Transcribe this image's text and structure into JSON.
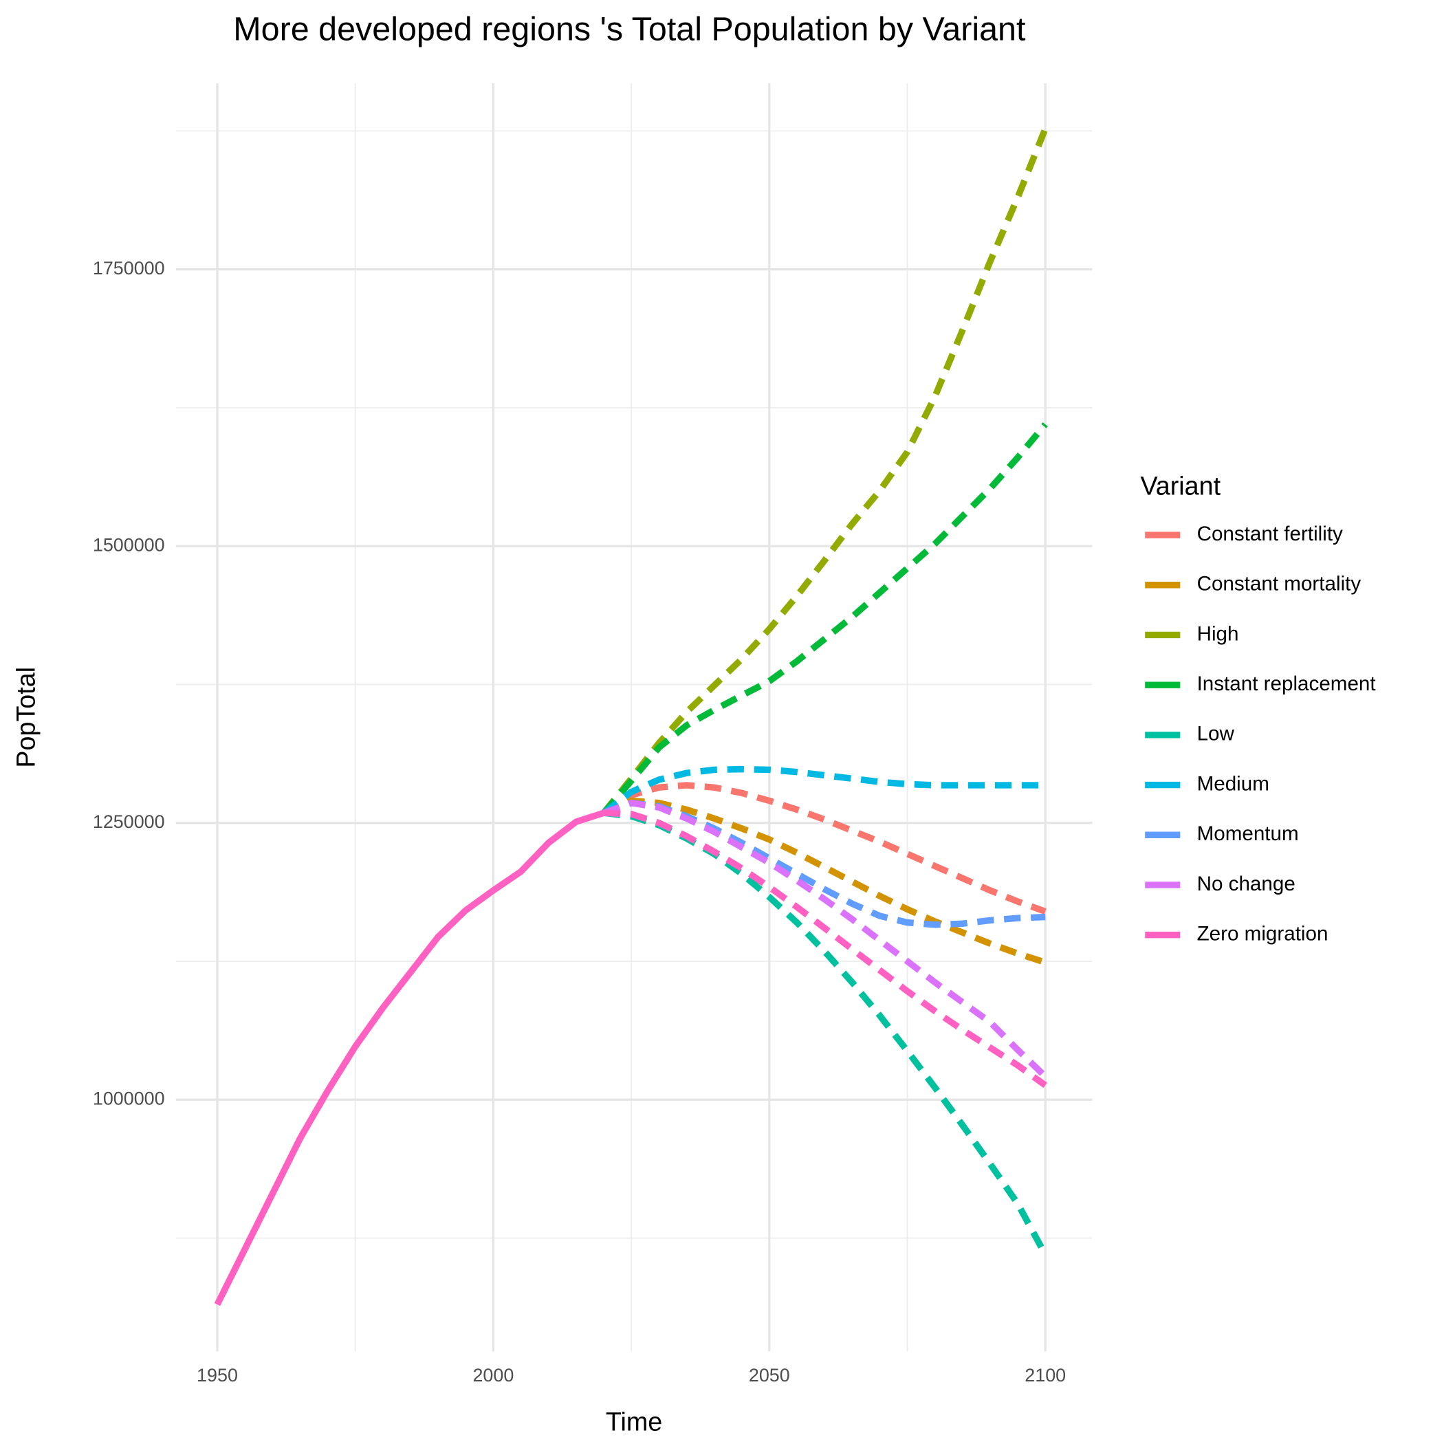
{
  "chart_data": {
    "type": "line",
    "title": "More developed regions 's Total Population by Variant",
    "x_label": "Time",
    "y_label": "PopTotal",
    "legend_title": "Variant",
    "legend_position": "right",
    "grid": true,
    "x": [
      1950,
      1955,
      1960,
      1965,
      1970,
      1975,
      1980,
      1985,
      1990,
      1995,
      2000,
      2005,
      2010,
      2015,
      2020,
      2025,
      2030,
      2035,
      2040,
      2045,
      2050,
      2055,
      2060,
      2065,
      2070,
      2075,
      2080,
      2085,
      2090,
      2095,
      2100
    ],
    "xlim": [
      1942.5,
      2108.5
    ],
    "xticks": [
      1950,
      2000,
      2050,
      2100
    ],
    "xticks_minor": [
      1975,
      2025,
      2075
    ],
    "ylim": [
      772600,
      1918000
    ],
    "yticks": [
      1000000,
      1250000,
      1500000,
      1750000
    ],
    "yticks_minor": [
      875000,
      1125000,
      1375000,
      1625000,
      1875000
    ],
    "estimates": {
      "color": "#FF61C3",
      "values": [
        815000,
        865000,
        915000,
        965000,
        1008000,
        1048000,
        1083000,
        1115000,
        1147000,
        1171000,
        1189000,
        1206000,
        1232000,
        1251000,
        1259000,
        null,
        null,
        null,
        null,
        null,
        null,
        null,
        null,
        null,
        null,
        null,
        null,
        null,
        null,
        null,
        null
      ]
    },
    "series": [
      {
        "name": "Constant fertility",
        "color": "#F8766D",
        "values": [
          null,
          null,
          null,
          null,
          null,
          null,
          null,
          null,
          null,
          null,
          null,
          null,
          null,
          null,
          1259000,
          1275000,
          1282000,
          1284000,
          1282000,
          1277000,
          1270000,
          1262000,
          1253000,
          1243000,
          1233000,
          1222000,
          1211000,
          1200000,
          1189000,
          1179000,
          1170000
        ]
      },
      {
        "name": "Constant mortality",
        "color": "#D39200",
        "values": [
          null,
          null,
          null,
          null,
          null,
          null,
          null,
          null,
          null,
          null,
          null,
          null,
          null,
          null,
          1259000,
          1270000,
          1268000,
          1262000,
          1254000,
          1245000,
          1235000,
          1223000,
          1210000,
          1197000,
          1184000,
          1172000,
          1161000,
          1151000,
          1141000,
          1132000,
          1124000
        ]
      },
      {
        "name": "High",
        "color": "#93AA00",
        "values": [
          null,
          null,
          null,
          null,
          null,
          null,
          null,
          null,
          null,
          null,
          null,
          null,
          null,
          null,
          1259000,
          1290000,
          1322000,
          1350000,
          1374000,
          1398000,
          1425000,
          1455000,
          1487000,
          1520000,
          1550000,
          1585000,
          1635000,
          1695000,
          1757000,
          1815000,
          1877000
        ]
      },
      {
        "name": "Instant replacement",
        "color": "#00BA38",
        "values": [
          null,
          null,
          null,
          null,
          null,
          null,
          null,
          null,
          null,
          null,
          null,
          null,
          null,
          null,
          1259000,
          1288000,
          1318000,
          1338000,
          1352000,
          1365000,
          1378000,
          1396000,
          1416000,
          1436000,
          1458000,
          1480000,
          1502000,
          1527000,
          1552000,
          1580000,
          1610000
        ]
      },
      {
        "name": "Low",
        "color": "#00C19F",
        "values": [
          null,
          null,
          null,
          null,
          null,
          null,
          null,
          null,
          null,
          null,
          null,
          null,
          null,
          null,
          1259000,
          1256000,
          1248000,
          1236000,
          1222000,
          1204000,
          1183000,
          1160000,
          1134000,
          1106000,
          1076000,
          1044000,
          1011000,
          977000,
          942000,
          906000,
          860000
        ]
      },
      {
        "name": "Medium",
        "color": "#00B9E3",
        "values": [
          null,
          null,
          null,
          null,
          null,
          null,
          null,
          null,
          null,
          null,
          null,
          null,
          null,
          null,
          1259000,
          1278000,
          1289000,
          1295000,
          1298000,
          1298500,
          1298000,
          1296000,
          1293000,
          1290000,
          1287000,
          1285000,
          1284000,
          1284000,
          1284000,
          1284000,
          1284000
        ]
      },
      {
        "name": "Momentum",
        "color": "#619CFF",
        "values": [
          null,
          null,
          null,
          null,
          null,
          null,
          null,
          null,
          null,
          null,
          null,
          null,
          null,
          null,
          1259000,
          1268000,
          1265000,
          1256000,
          1245000,
          1232000,
          1218000,
          1204000,
          1190000,
          1177000,
          1166000,
          1160000,
          1158000,
          1159000,
          1162000,
          1164000,
          1165000
        ]
      },
      {
        "name": "No change",
        "color": "#DB72FB",
        "values": [
          null,
          null,
          null,
          null,
          null,
          null,
          null,
          null,
          null,
          null,
          null,
          null,
          null,
          null,
          1259000,
          1268000,
          1264000,
          1254000,
          1242000,
          1228000,
          1214000,
          1198000,
          1181000,
          1163000,
          1144000,
          1125000,
          1106000,
          1088000,
          1070000,
          1045000,
          1021000
        ]
      },
      {
        "name": "Zero migration",
        "color": "#FF61C3",
        "values": [
          null,
          null,
          null,
          null,
          null,
          null,
          null,
          null,
          null,
          null,
          null,
          null,
          null,
          null,
          1259000,
          1258000,
          1250000,
          1238000,
          1224000,
          1209000,
          1192000,
          1174000,
          1155000,
          1136000,
          1117000,
          1098000,
          1080000,
          1063000,
          1047000,
          1031000,
          1013000
        ]
      }
    ]
  }
}
